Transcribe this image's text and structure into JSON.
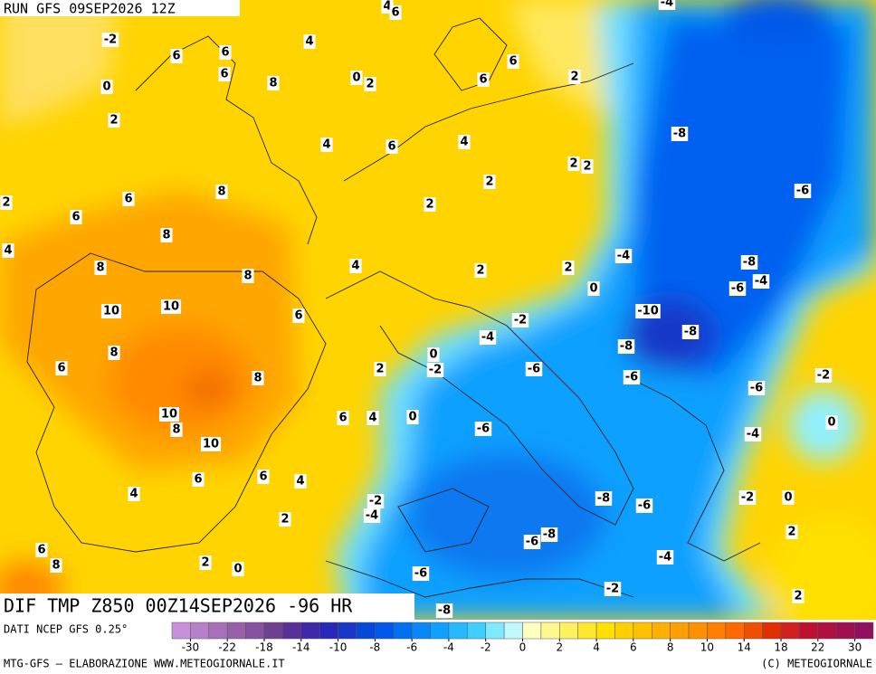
{
  "header": {
    "run": "RUN GFS 09SEP2026 12Z",
    "field": "DIF TMP Z850 00Z14SEP2026 -96 HR"
  },
  "map_labels": [
    -2,
    0,
    2,
    6,
    6,
    6,
    8,
    4,
    0,
    2,
    4,
    6,
    -4,
    6,
    6,
    2,
    4,
    6,
    4,
    2,
    2,
    -8,
    2,
    6,
    8,
    2,
    2,
    -6,
    6,
    8,
    4,
    -4,
    -8,
    8,
    8,
    4,
    2,
    2,
    -6,
    -4,
    0,
    10,
    10,
    6,
    -10,
    -2,
    -8,
    -4,
    8,
    0,
    -8,
    6,
    2,
    -2,
    -6,
    -6,
    8,
    -2,
    -6,
    10,
    8,
    6,
    4,
    0,
    -6,
    0,
    -4,
    10,
    6,
    6,
    4,
    4,
    -2,
    -4,
    -8,
    -6,
    -2,
    0,
    2,
    -6,
    -8,
    2,
    6,
    8,
    2,
    0,
    -4,
    -6,
    -2,
    2,
    -8
  ],
  "colorbar": {
    "source": "DATI NCEP GFS 0.25°",
    "colors": [
      "#c890d8",
      "#b880c8",
      "#a870b8",
      "#9860a8",
      "#8850a0",
      "#704090",
      "#5a3098",
      "#4028a8",
      "#2828b8",
      "#1838c8",
      "#0848d8",
      "#0058e8",
      "#0070f0",
      "#0888f8",
      "#10a0ff",
      "#28b8ff",
      "#40d0ff",
      "#80e8ff",
      "#c0f8ff",
      "#ffffc0",
      "#fff890",
      "#fff060",
      "#ffe830",
      "#ffe000",
      "#ffd000",
      "#ffc000",
      "#ffb000",
      "#ffa000",
      "#ff9000",
      "#ff8000",
      "#ff6a00",
      "#f05000",
      "#e03000",
      "#d02020",
      "#c01030",
      "#b01040",
      "#a01050",
      "#901060"
    ],
    "ticks": [
      -30,
      -22,
      -18,
      -14,
      -10,
      -8,
      -6,
      -4,
      -2,
      0,
      2,
      4,
      6,
      8,
      10,
      14,
      18,
      22,
      30
    ]
  },
  "footer": {
    "credit": "MTG-GFS — ELABORAZIONE WWW.METEOGIORNALE.IT",
    "copyright": "(C) METEOGIORNALE"
  }
}
